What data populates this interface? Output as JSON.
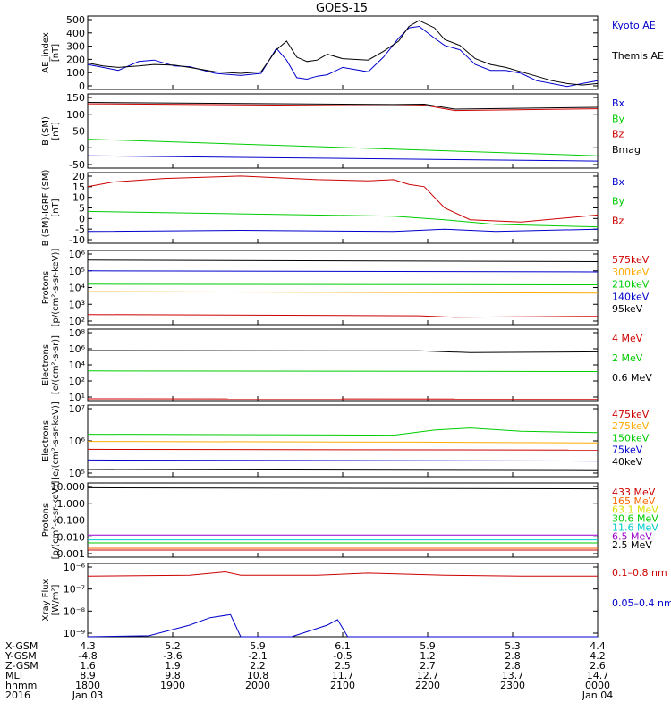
{
  "title": "GOES-15",
  "chart_data": [
    {
      "type": "line",
      "panel": "ae",
      "ylabel": [
        "AE_index",
        "[nT]"
      ],
      "ylim": [
        0,
        500
      ],
      "yticks": [
        "500",
        "400",
        "300",
        "200",
        "100",
        "0"
      ],
      "series": [
        {
          "name": "Kyoto AE",
          "color": "#0000cc",
          "x": [
            0,
            0.03,
            0.06,
            0.1,
            0.13,
            0.17,
            0.2,
            0.25,
            0.3,
            0.34,
            0.37,
            0.39,
            0.41,
            0.43,
            0.45,
            0.47,
            0.5,
            0.55,
            0.58,
            0.61,
            0.63,
            0.65,
            0.68,
            0.7,
            0.73,
            0.76,
            0.79,
            0.82,
            0.85,
            0.88,
            0.91,
            0.94,
            0.97,
            1.0
          ],
          "y": [
            170,
            150,
            130,
            190,
            200,
            160,
            155,
            110,
            95,
            110,
            280,
            200,
            80,
            70,
            90,
            100,
            150,
            120,
            220,
            350,
            420,
            430,
            350,
            300,
            270,
            170,
            130,
            130,
            110,
            60,
            40,
            20,
            40,
            60
          ]
        },
        {
          "name": "Themis AE",
          "color": "#000000",
          "x": [
            0,
            0.03,
            0.06,
            0.1,
            0.13,
            0.17,
            0.2,
            0.25,
            0.3,
            0.34,
            0.37,
            0.39,
            0.41,
            0.43,
            0.45,
            0.47,
            0.5,
            0.55,
            0.58,
            0.61,
            0.63,
            0.65,
            0.68,
            0.7,
            0.73,
            0.76,
            0.79,
            0.82,
            0.85,
            0.88,
            0.91,
            0.94,
            0.97,
            1.0
          ],
          "y": [
            180,
            160,
            150,
            160,
            170,
            165,
            150,
            120,
            110,
            120,
            270,
            330,
            220,
            190,
            200,
            240,
            210,
            200,
            260,
            330,
            430,
            470,
            420,
            340,
            300,
            210,
            170,
            150,
            120,
            90,
            60,
            40,
            30,
            40
          ]
        }
      ]
    },
    {
      "type": "line",
      "panel": "b-sm",
      "ylabel": [
        "B (SM)",
        "[nT]"
      ],
      "ylim": [
        -60,
        150
      ],
      "yticks": [
        "150",
        "100",
        "50",
        "0",
        "-50"
      ],
      "series": [
        {
          "name": "Bx",
          "color": "#0000cc",
          "x": [
            0,
            1
          ],
          "y": [
            -25,
            -40
          ]
        },
        {
          "name": "By",
          "color": "#00cc00",
          "x": [
            0,
            1
          ],
          "y": [
            22,
            -25
          ]
        },
        {
          "name": "Bz",
          "color": "#cc0000",
          "x": [
            0,
            0.6,
            0.66,
            0.72,
            1
          ],
          "y": [
            122,
            116,
            118,
            103,
            108
          ]
        },
        {
          "name": "Bmag",
          "color": "#000000",
          "x": [
            0,
            0.6,
            0.66,
            0.72,
            1
          ],
          "y": [
            126,
            120,
            121,
            107,
            112
          ]
        }
      ]
    },
    {
      "type": "line",
      "panel": "b-igrf",
      "ylabel": [
        "B (SM)-IGRF (SM)",
        "[nT]"
      ],
      "ylim": [
        -10,
        20
      ],
      "yticks": [
        "20",
        "15",
        "10",
        "5",
        "0",
        "-5",
        "-10"
      ],
      "series": [
        {
          "name": "Bx",
          "color": "#0000cc",
          "x": [
            0,
            0.3,
            0.6,
            0.7,
            0.8,
            1
          ],
          "y": [
            -5,
            -4.5,
            -5,
            -4,
            -5,
            -4
          ]
        },
        {
          "name": "By",
          "color": "#00cc00",
          "x": [
            0,
            0.3,
            0.6,
            0.7,
            0.8,
            1
          ],
          "y": [
            3.5,
            2.5,
            1.5,
            0,
            -2,
            -3
          ]
        },
        {
          "name": "Bz",
          "color": "#cc0000",
          "x": [
            0,
            0.05,
            0.15,
            0.3,
            0.45,
            0.55,
            0.6,
            0.63,
            0.66,
            0.7,
            0.75,
            0.85,
            1
          ],
          "y": [
            14,
            16,
            17.5,
            18.5,
            17,
            16.5,
            17,
            15,
            14,
            5,
            0,
            -1,
            2
          ]
        }
      ]
    },
    {
      "type": "line",
      "panel": "protons-low",
      "ylabel": [
        "Protons",
        "[p/(cm²-s-sr-keV)]"
      ],
      "log": true,
      "ylim": [
        100,
        1000000
      ],
      "yticks": [
        "10⁶",
        "10⁵",
        "10⁴",
        "10³",
        "10²"
      ],
      "series": [
        {
          "name": "575keV",
          "color": "#cc0000",
          "x": [
            0,
            0.65,
            0.72,
            1
          ],
          "y": [
            350,
            300,
            250,
            280
          ]
        },
        {
          "name": "300keV",
          "color": "#ffaa00",
          "x": [
            0,
            1
          ],
          "y": [
            6000,
            5000
          ]
        },
        {
          "name": "210keV",
          "color": "#00cc00",
          "x": [
            0,
            1
          ],
          "y": [
            15000,
            14000
          ]
        },
        {
          "name": "140keV",
          "color": "#0000cc",
          "x": [
            0,
            1
          ],
          "y": [
            80000,
            70000
          ]
        },
        {
          "name": "95keV",
          "color": "#000000",
          "x": [
            0,
            1
          ],
          "y": [
            300000,
            250000
          ]
        }
      ]
    },
    {
      "type": "line",
      "panel": "electrons-high",
      "ylabel": [
        "Electrons",
        "[e/(cm²-s-sr)]"
      ],
      "log": true,
      "ylim": [
        10,
        100000000
      ],
      "yticks": [
        "10⁸",
        "10⁶",
        "10⁴",
        "10²",
        "10¹"
      ],
      "series": [
        {
          "name": "4 MeV",
          "color": "#cc0000",
          "x": [
            0,
            1
          ],
          "y": [
            15,
            14
          ]
        },
        {
          "name": "2 MeV",
          "color": "#00cc00",
          "x": [
            0,
            1
          ],
          "y": [
            8000,
            7000
          ]
        },
        {
          "name": "0.6 MeV",
          "color": "#000000",
          "x": [
            0,
            0.65,
            0.75,
            1
          ],
          "y": [
            800000,
            750000,
            500000,
            600000
          ]
        }
      ]
    },
    {
      "type": "line",
      "panel": "electrons-low",
      "ylabel": [
        "Electrons",
        "[e/(cm²-s-sr-keV)]"
      ],
      "log": true,
      "ylim": [
        10000,
        10000000
      ],
      "yticks": [
        "10⁷",
        "10⁶",
        "10⁵"
      ],
      "series": [
        {
          "name": "475keV",
          "color": "#cc0000",
          "x": [
            0,
            1
          ],
          "y": [
            140000,
            130000
          ]
        },
        {
          "name": "275keV",
          "color": "#ffaa00",
          "x": [
            0,
            0.65,
            1
          ],
          "y": [
            300000,
            280000,
            260000
          ]
        },
        {
          "name": "150keV",
          "color": "#00cc00",
          "x": [
            0,
            0.6,
            0.68,
            0.75,
            0.85,
            1
          ],
          "y": [
            600000,
            550000,
            900000,
            1100000,
            800000,
            700000
          ]
        },
        {
          "name": "75keV",
          "color": "#0000cc",
          "x": [
            0,
            1
          ],
          "y": [
            50000,
            45000
          ]
        },
        {
          "name": "40keV",
          "color": "#000000",
          "x": [
            0,
            1
          ],
          "y": [
            20000,
            18000
          ]
        }
      ]
    },
    {
      "type": "line",
      "panel": "protons-high",
      "ylabel": [
        "Protons",
        "[p/(cm²-s-sr-keV)]"
      ],
      "log": true,
      "ylim": [
        0.0008,
        15000
      ],
      "yticks": [
        "10.000",
        "1.000",
        "0.100",
        "0.010",
        "0.001"
      ],
      "series": [
        {
          "name": "433 MeV",
          "color": "#cc0000",
          "x": [
            0,
            1
          ],
          "y": [
            0.004,
            0.004
          ]
        },
        {
          "name": "165 MeV",
          "color": "#ff6600",
          "x": [
            0,
            1
          ],
          "y": [
            0.006,
            0.006
          ]
        },
        {
          "name": "63.1 MeV",
          "color": "#dddd00",
          "x": [
            0,
            1
          ],
          "y": [
            0.01,
            0.01
          ]
        },
        {
          "name": "30.6 MeV",
          "color": "#00cc00",
          "x": [
            0,
            1
          ],
          "y": [
            0.02,
            0.02
          ]
        },
        {
          "name": "11.6 MeV",
          "color": "#00cccc",
          "x": [
            0,
            1
          ],
          "y": [
            0.04,
            0.04
          ]
        },
        {
          "name": "6.5 MeV",
          "color": "#9900cc",
          "x": [
            0,
            1
          ],
          "y": [
            0.12,
            0.12
          ]
        },
        {
          "name": "2.5 MeV",
          "color": "#000000",
          "x": [
            0,
            1
          ],
          "y": [
            5000,
            4000
          ]
        }
      ]
    },
    {
      "type": "line",
      "panel": "xray",
      "ylabel": [
        "Xray Flux",
        "[W/m²]"
      ],
      "log": true,
      "ylim": [
        1e-09,
        1e-06
      ],
      "yticks": [
        "10⁻⁶",
        "10⁻⁷",
        "10⁻⁸",
        "10⁻⁹"
      ],
      "series": [
        {
          "name": "0.1–0.8 nm",
          "color": "#cc0000",
          "x": [
            0,
            0.2,
            0.27,
            0.3,
            0.45,
            0.55,
            0.7,
            0.85,
            1
          ],
          "y": [
            3e-07,
            3.3e-07,
            4.5e-07,
            3.3e-07,
            3.3e-07,
            4e-07,
            3.3e-07,
            3e-07,
            3e-07
          ]
        },
        {
          "name": "0.05–0.4 nm",
          "color": "#0000cc",
          "x": [
            0,
            0.12,
            0.2,
            0.24,
            0.28,
            0.3,
            0.4,
            0.47,
            0.49,
            0.51,
            0.55,
            1
          ],
          "y": [
            1e-09,
            1.1e-09,
            3e-09,
            6e-09,
            8e-09,
            1e-09,
            1e-09,
            3e-09,
            5e-09,
            1e-09,
            1e-09,
            1e-09
          ]
        }
      ]
    }
  ],
  "legend_labels": {
    "ae": [
      "Kyoto AE",
      "Themis AE"
    ],
    "b_sm": [
      "Bx",
      "By",
      "Bz",
      "Bmag"
    ],
    "b_igrf": [
      "Bx",
      "By",
      "Bz"
    ],
    "protons_low": [
      "575keV",
      "300keV",
      "210keV",
      "140keV",
      "95keV"
    ],
    "electrons_high": [
      "4 MeV",
      "2 MeV",
      "0.6 MeV"
    ],
    "electrons_low": [
      "475keV",
      "275keV",
      "150keV",
      "75keV",
      "40keV"
    ],
    "protons_high": [
      "433 MeV",
      "165 MeV",
      "63.1 MeV",
      "30.6 MeV",
      "11.6 MeV",
      "6.5 MeV",
      "2.5 MeV"
    ],
    "xray": [
      "0.1–0.8 nm",
      "0.05–0.4 nm"
    ]
  },
  "footer": {
    "row_labels": [
      "X-GSM",
      "Y-GSM",
      "Z-GSM",
      "MLT",
      "hhmm",
      "2016"
    ],
    "columns": [
      [
        "4.3",
        "-4.8",
        "1.6",
        "8.9",
        "1800",
        "Jan 03"
      ],
      [
        "5.2",
        "-3.6",
        "1.9",
        "9.8",
        "1900",
        ""
      ],
      [
        "5.9",
        "-2.1",
        "2.2",
        "10.8",
        "2000",
        ""
      ],
      [
        "6.1",
        "-0.5",
        "2.5",
        "11.7",
        "2100",
        ""
      ],
      [
        "5.9",
        "1.2",
        "2.7",
        "12.7",
        "2200",
        ""
      ],
      [
        "5.3",
        "2.8",
        "2.8",
        "13.7",
        "2300",
        ""
      ],
      [
        "4.4",
        "4.2",
        "2.6",
        "14.7",
        "0000",
        "Jan 04"
      ]
    ]
  }
}
